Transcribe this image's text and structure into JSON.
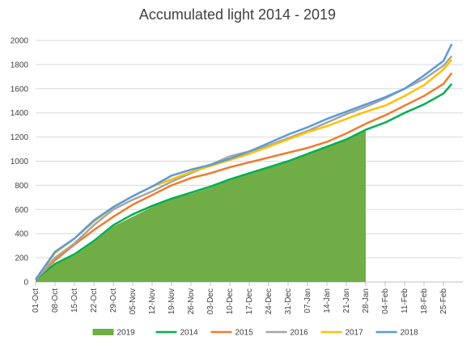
{
  "chart_data": {
    "type": "line",
    "title": "Accumulated light 2014 - 2019",
    "xlabel": "",
    "ylabel": "",
    "ylim": [
      0,
      2000
    ],
    "yticks": [
      0,
      200,
      400,
      600,
      800,
      1000,
      1200,
      1400,
      1600,
      1800,
      2000
    ],
    "x_tick_labels": [
      "01-Oct",
      "08-Oct",
      "15-Oct",
      "22-Oct",
      "29-Oct",
      "05-Nov",
      "12-Nov",
      "19-Nov",
      "26-Nov",
      "03-Dec",
      "10-Dec",
      "17-Dec",
      "24-Dec",
      "31-Dec",
      "07-Jan",
      "14-Jan",
      "21-Jan",
      "28-Jan",
      "04-Feb",
      "11-Feb",
      "18-Feb",
      "25-Feb"
    ],
    "x_unit": "days from 01-Oct",
    "grid": "horizontal",
    "legend_position": "bottom",
    "series": [
      {
        "name": "2019",
        "style": "area",
        "color": "#70ad47",
        "x": [
          0,
          7,
          14,
          21,
          28,
          35,
          42,
          49,
          56,
          63,
          70,
          77,
          84,
          91,
          98,
          105,
          112,
          119
        ],
        "values": [
          20,
          150,
          220,
          330,
          460,
          540,
          620,
          690,
          730,
          780,
          850,
          900,
          950,
          1000,
          1060,
          1120,
          1180,
          1250
        ]
      },
      {
        "name": "2014",
        "style": "line",
        "color": "#00b050",
        "x": [
          0,
          7,
          14,
          21,
          28,
          35,
          42,
          49,
          56,
          63,
          70,
          77,
          84,
          91,
          98,
          105,
          112,
          119,
          126,
          133,
          140,
          147,
          150
        ],
        "values": [
          20,
          150,
          230,
          340,
          470,
          560,
          630,
          690,
          740,
          790,
          850,
          900,
          950,
          1000,
          1060,
          1120,
          1180,
          1260,
          1320,
          1400,
          1470,
          1560,
          1640
        ]
      },
      {
        "name": "2015",
        "style": "line",
        "color": "#ed7d31",
        "x": [
          0,
          7,
          14,
          21,
          28,
          35,
          42,
          49,
          56,
          63,
          70,
          77,
          84,
          91,
          98,
          105,
          112,
          119,
          126,
          133,
          140,
          147,
          150
        ],
        "values": [
          20,
          180,
          310,
          430,
          540,
          640,
          720,
          800,
          860,
          900,
          950,
          990,
          1030,
          1070,
          1110,
          1160,
          1230,
          1310,
          1380,
          1460,
          1540,
          1640,
          1730
        ]
      },
      {
        "name": "2016",
        "style": "line",
        "color": "#a5a5a5",
        "x": [
          0,
          7,
          14,
          21,
          28,
          35,
          42,
          49,
          56,
          63,
          70,
          77,
          84,
          91,
          98,
          105,
          112,
          119,
          126,
          133,
          140,
          147,
          150
        ],
        "values": [
          20,
          200,
          320,
          470,
          600,
          680,
          750,
          830,
          900,
          970,
          1040,
          1080,
          1130,
          1190,
          1250,
          1320,
          1390,
          1450,
          1520,
          1600,
          1680,
          1790,
          1870
        ]
      },
      {
        "name": "2017",
        "style": "line",
        "color": "#ffc000",
        "x": [
          0,
          7,
          14,
          21,
          28,
          35,
          42,
          49,
          56,
          63,
          70,
          77,
          84,
          91,
          98,
          105,
          112,
          119,
          126,
          133,
          140,
          147,
          150
        ],
        "values": [
          20,
          240,
          360,
          500,
          620,
          710,
          790,
          850,
          910,
          960,
          1010,
          1060,
          1120,
          1180,
          1240,
          1290,
          1350,
          1410,
          1460,
          1540,
          1630,
          1760,
          1840
        ]
      },
      {
        "name": "2018",
        "style": "line",
        "color": "#5b9bd5",
        "x": [
          0,
          7,
          14,
          21,
          28,
          35,
          42,
          49,
          56,
          63,
          70,
          77,
          84,
          91,
          98,
          105,
          112,
          119,
          126,
          133,
          140,
          147,
          150
        ],
        "values": [
          20,
          250,
          360,
          510,
          620,
          710,
          790,
          880,
          930,
          970,
          1020,
          1080,
          1150,
          1220,
          1280,
          1350,
          1410,
          1470,
          1530,
          1600,
          1710,
          1830,
          1970
        ]
      }
    ]
  }
}
